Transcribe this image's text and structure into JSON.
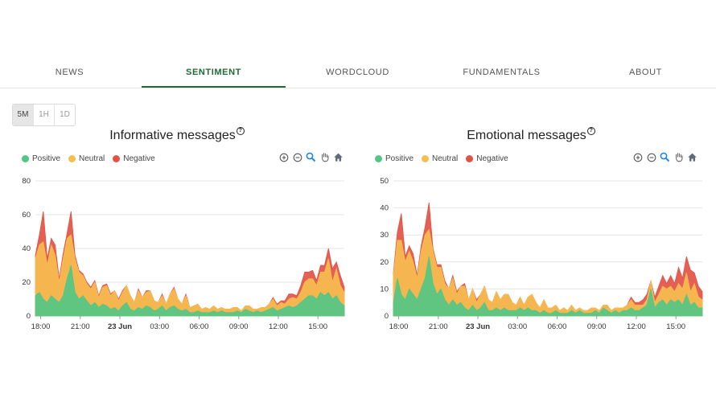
{
  "tabs": [
    {
      "label": "NEWS",
      "active": false
    },
    {
      "label": "SENTIMENT",
      "active": true
    },
    {
      "label": "WORDCLOUD",
      "active": false
    },
    {
      "label": "FUNDAMENTALS",
      "active": false
    },
    {
      "label": "ABOUT",
      "active": false
    }
  ],
  "range_buttons": [
    {
      "label": "5M",
      "active": true
    },
    {
      "label": "1H",
      "active": false
    },
    {
      "label": "1D",
      "active": false
    }
  ],
  "help_glyph": "?",
  "toolbar_icons": [
    "zoom-in-icon",
    "zoom-out-icon",
    "zoom-selection-icon",
    "pan-hand-icon",
    "reset-home-icon"
  ],
  "colors": {
    "positive": "#52c785",
    "neutral": "#f7be4f",
    "negative": "#e35245",
    "tab_active": "#1e6b34"
  },
  "chart_data": [
    {
      "type": "area",
      "stacked": true,
      "title": "Informative messages",
      "legend": [
        "Positive",
        "Neutral",
        "Negative"
      ],
      "legend_position": "top-left",
      "ylim": [
        0,
        80
      ],
      "y_ticks": [
        "0",
        "20",
        "40",
        "60",
        "80"
      ],
      "x_ticks": [
        "18:00",
        "21:00",
        "23 Jun",
        "03:00",
        "06:00",
        "09:00",
        "12:00",
        "15:00"
      ],
      "x_range_hours": [
        17.6,
        17.0
      ],
      "grid": true,
      "x": [
        "17:36",
        "17:54",
        "18:12",
        "18:30",
        "18:48",
        "19:06",
        "19:24",
        "19:42",
        "20:00",
        "20:18",
        "20:36",
        "20:54",
        "21:12",
        "21:30",
        "21:48",
        "22:06",
        "22:24",
        "22:42",
        "23:00",
        "23:18",
        "23:36",
        "23:54",
        "00:12",
        "00:30",
        "00:48",
        "01:06",
        "01:24",
        "01:42",
        "02:00",
        "02:18",
        "02:36",
        "02:54",
        "03:12",
        "03:30",
        "03:48",
        "04:06",
        "04:24",
        "04:42",
        "05:00",
        "05:18",
        "05:36",
        "05:54",
        "06:12",
        "06:30",
        "06:48",
        "07:06",
        "07:24",
        "07:42",
        "08:00",
        "08:18",
        "08:36",
        "08:54",
        "09:12",
        "09:30",
        "09:48",
        "10:06",
        "10:24",
        "10:42",
        "11:00",
        "11:18",
        "11:36",
        "11:54",
        "12:12",
        "12:30",
        "12:48",
        "13:06",
        "13:24",
        "13:42",
        "14:00",
        "14:18",
        "14:36",
        "14:54",
        "15:12",
        "15:30",
        "15:48",
        "16:06",
        "16:24",
        "16:42",
        "17:00"
      ],
      "series": [
        {
          "name": "Positive",
          "values": [
            12,
            14,
            10,
            8,
            12,
            10,
            8,
            12,
            22,
            30,
            14,
            10,
            12,
            9,
            6,
            8,
            5,
            7,
            6,
            4,
            5,
            3,
            6,
            8,
            4,
            3,
            5,
            4,
            6,
            5,
            3,
            4,
            6,
            3,
            5,
            6,
            4,
            3,
            4,
            2,
            2,
            3,
            2,
            2,
            2,
            3,
            2,
            3,
            2,
            2,
            2,
            3,
            2,
            4,
            3,
            2,
            3,
            2,
            3,
            4,
            5,
            3,
            4,
            5,
            6,
            5,
            6,
            8,
            10,
            12,
            12,
            10,
            14,
            12,
            14,
            10,
            12,
            8,
            6
          ]
        },
        {
          "name": "Neutral",
          "values": [
            22,
            28,
            34,
            22,
            30,
            26,
            12,
            22,
            24,
            18,
            20,
            16,
            12,
            10,
            10,
            12,
            6,
            10,
            12,
            8,
            10,
            6,
            8,
            10,
            8,
            5,
            10,
            7,
            8,
            10,
            6,
            4,
            6,
            4,
            8,
            10,
            6,
            4,
            8,
            3,
            4,
            4,
            2,
            3,
            2,
            3,
            2,
            2,
            2,
            2,
            3,
            2,
            1,
            2,
            3,
            2,
            1,
            3,
            2,
            3,
            5,
            3,
            4,
            2,
            4,
            6,
            4,
            6,
            10,
            10,
            10,
            8,
            12,
            14,
            20,
            10,
            16,
            10,
            8
          ]
        },
        {
          "name": "Negative",
          "values": [
            2,
            6,
            18,
            4,
            4,
            6,
            2,
            3,
            3,
            14,
            2,
            1,
            1,
            1,
            1,
            1,
            1,
            1,
            1,
            1,
            0,
            1,
            1,
            0,
            0,
            0,
            1,
            0,
            1,
            0,
            0,
            0,
            1,
            0,
            0,
            1,
            0,
            0,
            1,
            0,
            0,
            0,
            0,
            0,
            0,
            0,
            0,
            0,
            0,
            0,
            0,
            0,
            0,
            0,
            0,
            0,
            0,
            0,
            0,
            0,
            1,
            1,
            1,
            2,
            3,
            2,
            2,
            4,
            6,
            4,
            5,
            3,
            4,
            4,
            6,
            8,
            4,
            6,
            3
          ]
        }
      ]
    },
    {
      "type": "area",
      "stacked": true,
      "title": "Emotional messages",
      "legend": [
        "Positive",
        "Neutral",
        "Negative"
      ],
      "legend_position": "top-left",
      "ylim": [
        0,
        50
      ],
      "y_ticks": [
        "0",
        "10",
        "20",
        "30",
        "40",
        "50"
      ],
      "x_ticks": [
        "18:00",
        "21:00",
        "23 Jun",
        "03:00",
        "06:00",
        "09:00",
        "12:00",
        "15:00"
      ],
      "x_range_hours": [
        17.6,
        17.0
      ],
      "grid": true,
      "x": [
        "17:36",
        "17:54",
        "18:12",
        "18:30",
        "18:48",
        "19:06",
        "19:24",
        "19:42",
        "20:00",
        "20:18",
        "20:36",
        "20:54",
        "21:12",
        "21:30",
        "21:48",
        "22:06",
        "22:24",
        "22:42",
        "23:00",
        "23:18",
        "23:36",
        "23:54",
        "00:12",
        "00:30",
        "00:48",
        "01:06",
        "01:24",
        "01:42",
        "02:00",
        "02:18",
        "02:36",
        "02:54",
        "03:12",
        "03:30",
        "03:48",
        "04:06",
        "04:24",
        "04:42",
        "05:00",
        "05:18",
        "05:36",
        "05:54",
        "06:12",
        "06:30",
        "06:48",
        "07:06",
        "07:24",
        "07:42",
        "08:00",
        "08:18",
        "08:36",
        "08:54",
        "09:12",
        "09:30",
        "09:48",
        "10:06",
        "10:24",
        "10:42",
        "11:00",
        "11:18",
        "11:36",
        "11:54",
        "12:12",
        "12:30",
        "12:48",
        "13:06",
        "13:24",
        "13:42",
        "14:00",
        "14:18",
        "14:36",
        "14:54",
        "15:12",
        "15:30",
        "15:48",
        "16:06",
        "16:24",
        "16:42",
        "17:00"
      ],
      "series": [
        {
          "name": "Positive",
          "values": [
            5,
            14,
            8,
            6,
            10,
            8,
            6,
            10,
            14,
            22,
            12,
            8,
            10,
            6,
            4,
            6,
            4,
            5,
            3,
            2,
            4,
            2,
            3,
            5,
            2,
            2,
            3,
            2,
            3,
            2,
            2,
            2,
            3,
            2,
            3,
            2,
            2,
            1,
            2,
            1,
            1,
            2,
            1,
            1,
            1,
            2,
            1,
            2,
            1,
            1,
            1,
            2,
            1,
            3,
            2,
            1,
            2,
            1,
            2,
            2,
            3,
            2,
            2,
            3,
            4,
            10,
            3,
            5,
            6,
            4,
            6,
            5,
            6,
            4,
            8,
            4,
            5,
            3,
            3
          ]
        },
        {
          "name": "Neutral",
          "values": [
            10,
            14,
            20,
            14,
            14,
            12,
            8,
            14,
            16,
            10,
            12,
            10,
            8,
            6,
            6,
            8,
            4,
            6,
            8,
            4,
            6,
            3,
            5,
            6,
            4,
            3,
            6,
            4,
            5,
            6,
            3,
            2,
            4,
            2,
            4,
            6,
            3,
            2,
            4,
            2,
            2,
            2,
            1,
            2,
            1,
            2,
            1,
            1,
            1,
            1,
            2,
            1,
            1,
            1,
            2,
            1,
            1,
            2,
            1,
            2,
            3,
            2,
            2,
            1,
            2,
            3,
            2,
            3,
            5,
            6,
            5,
            4,
            6,
            6,
            8,
            5,
            7,
            4,
            3
          ]
        },
        {
          "name": "Negative",
          "values": [
            1,
            3,
            10,
            2,
            2,
            3,
            1,
            2,
            3,
            10,
            1,
            1,
            1,
            1,
            0,
            1,
            1,
            0,
            1,
            0,
            0,
            1,
            0,
            0,
            0,
            0,
            0,
            0,
            0,
            0,
            0,
            0,
            0,
            0,
            0,
            0,
            0,
            0,
            0,
            0,
            0,
            0,
            0,
            0,
            0,
            0,
            0,
            0,
            0,
            0,
            0,
            0,
            0,
            0,
            0,
            0,
            0,
            0,
            0,
            0,
            1,
            1,
            1,
            2,
            2,
            0,
            2,
            3,
            4,
            2,
            4,
            3,
            6,
            4,
            6,
            8,
            4,
            4,
            3
          ]
        }
      ]
    }
  ]
}
